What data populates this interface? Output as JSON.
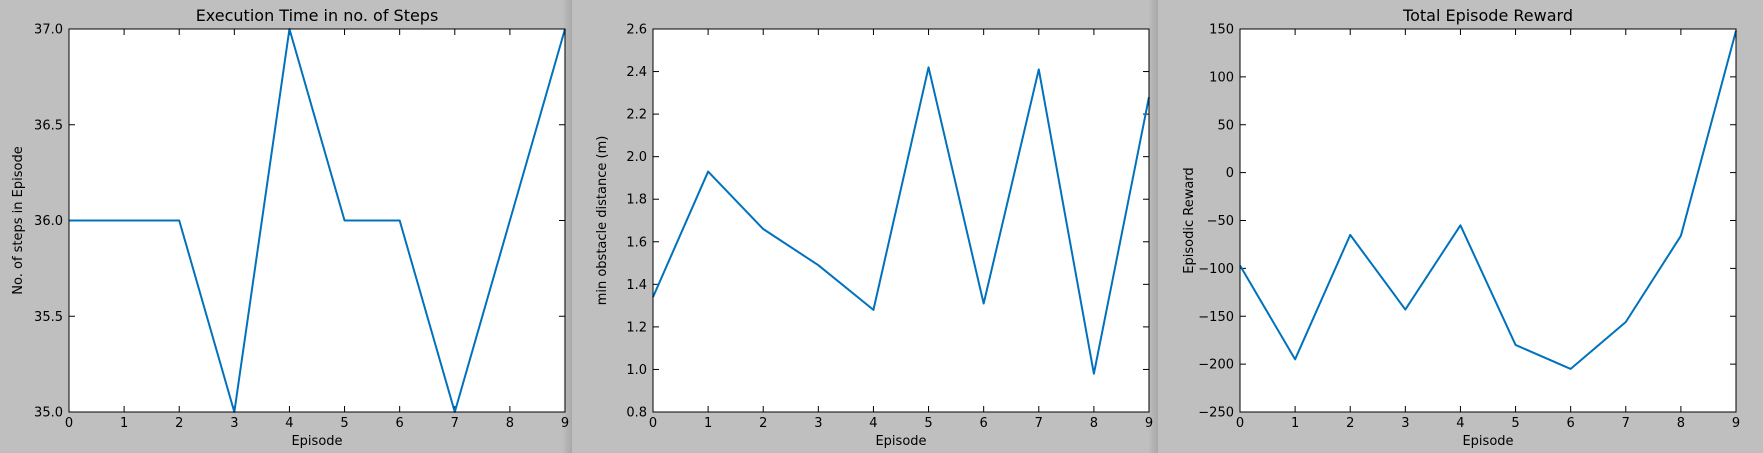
{
  "chart_data": [
    {
      "type": "line",
      "title": "Execution Time in no. of Steps",
      "xlabel": "Episode",
      "ylabel": "No. of steps in Episode",
      "x": [
        0,
        1,
        2,
        3,
        4,
        5,
        6,
        7,
        8,
        9
      ],
      "series": [
        {
          "values": [
            36,
            36,
            36,
            35,
            37,
            36,
            36,
            35,
            36,
            37
          ]
        }
      ],
      "xlim": [
        0,
        9
      ],
      "ylim": [
        35.0,
        37.0
      ],
      "xticks": [
        "0",
        "1",
        "2",
        "3",
        "4",
        "5",
        "6",
        "7",
        "8",
        "9"
      ],
      "yticks": [
        "35.0",
        "35.5",
        "36.0",
        "36.5",
        "37.0"
      ],
      "yticks_values": [
        35.0,
        35.5,
        36.0,
        36.5,
        37.0
      ],
      "line_color": "#0072bd",
      "grid": false
    },
    {
      "type": "line",
      "title": "",
      "xlabel": "Episode",
      "ylabel": "min obstacle distance (m)",
      "x": [
        0,
        1,
        2,
        3,
        4,
        5,
        6,
        7,
        8,
        9
      ],
      "series": [
        {
          "values": [
            1.34,
            1.93,
            1.66,
            1.49,
            1.28,
            2.42,
            1.31,
            2.41,
            0.98,
            2.28
          ]
        }
      ],
      "xlim": [
        0,
        9
      ],
      "ylim": [
        0.8,
        2.6
      ],
      "xticks": [
        "0",
        "1",
        "2",
        "3",
        "4",
        "5",
        "6",
        "7",
        "8",
        "9"
      ],
      "yticks": [
        "0.8",
        "1.0",
        "1.2",
        "1.4",
        "1.6",
        "1.8",
        "2.0",
        "2.2",
        "2.4",
        "2.6"
      ],
      "yticks_values": [
        0.8,
        1.0,
        1.2,
        1.4,
        1.6,
        1.8,
        2.0,
        2.2,
        2.4,
        2.6
      ],
      "line_color": "#0072bd",
      "grid": false
    },
    {
      "type": "line",
      "title": "Total Episode Reward",
      "xlabel": "Episode",
      "ylabel": "Episodic Reward",
      "x": [
        0,
        1,
        2,
        3,
        4,
        5,
        6,
        7,
        8,
        9
      ],
      "series": [
        {
          "values": [
            -97,
            -195,
            -65,
            -143,
            -55,
            -180,
            -205,
            -156,
            -66,
            148
          ]
        }
      ],
      "xlim": [
        0,
        9
      ],
      "ylim": [
        -250,
        150
      ],
      "xticks": [
        "0",
        "1",
        "2",
        "3",
        "4",
        "5",
        "6",
        "7",
        "8",
        "9"
      ],
      "yticks": [
        "−250",
        "−200",
        "−150",
        "−100",
        "−50",
        "0",
        "50",
        "100",
        "150"
      ],
      "yticks_values": [
        -250,
        -200,
        -150,
        -100,
        -50,
        0,
        50,
        100,
        150
      ],
      "line_color": "#0072bd",
      "grid": false
    }
  ]
}
